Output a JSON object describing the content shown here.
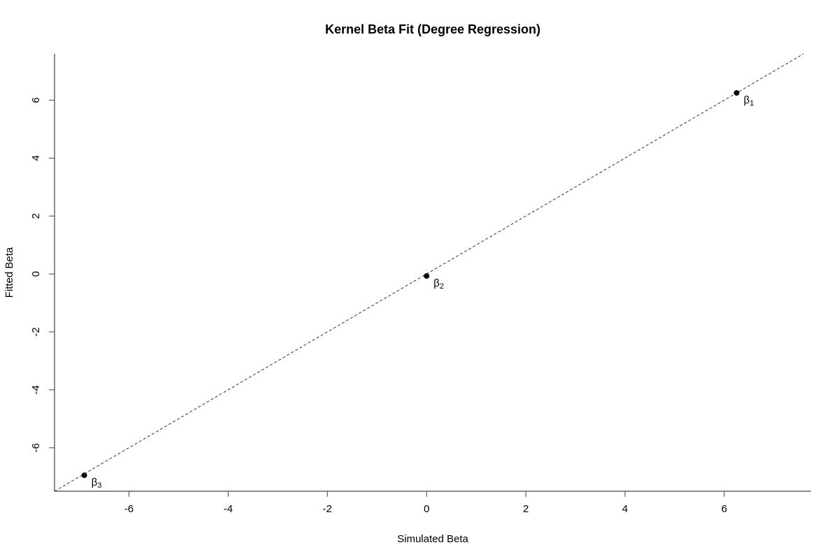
{
  "chart_data": {
    "type": "scatter",
    "title": "Kernel Beta Fit (Degree Regression)",
    "xlabel": "Simulated Beta",
    "ylabel": "Fitted Beta",
    "xlim": [
      -7.5,
      7.75
    ],
    "ylim": [
      -7.5,
      7.6
    ],
    "xticks": [
      -6,
      -4,
      -2,
      0,
      2,
      4,
      6
    ],
    "yticks": [
      -6,
      -4,
      -2,
      0,
      2,
      4,
      6
    ],
    "grid": false,
    "reference_line": {
      "slope": 1,
      "intercept": 0,
      "style": "dashed"
    },
    "point_color": "#1a0000",
    "points": [
      {
        "x": 6.25,
        "y": 6.25,
        "label": "β",
        "sub": "1"
      },
      {
        "x": 0.0,
        "y": -0.07,
        "label": "β",
        "sub": "2"
      },
      {
        "x": -6.9,
        "y": -6.95,
        "label": "β",
        "sub": "3"
      }
    ]
  }
}
